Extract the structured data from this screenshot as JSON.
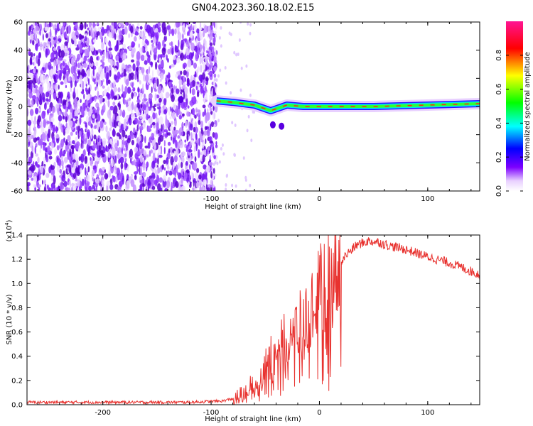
{
  "title": "GN04.2023.360.18.02.E15",
  "chart_data": [
    {
      "type": "heatmap",
      "xlabel": "Height of straight line (km)",
      "ylabel": "Frequency (Hz)",
      "xlim": [
        -270,
        148
      ],
      "ylim": [
        -60,
        60
      ],
      "xticks": [
        -200,
        -100,
        0,
        100
      ],
      "yticks": [
        -60,
        -40,
        -20,
        0,
        20,
        40,
        60
      ],
      "grid": false,
      "noise_region_x": [
        -270,
        -95
      ],
      "signal_band_freq_hz": 1.5,
      "signal_track": [
        {
          "x": -95,
          "y": 4
        },
        {
          "x": -80,
          "y": 3
        },
        {
          "x": -60,
          "y": 1
        },
        {
          "x": -45,
          "y": -3
        },
        {
          "x": -30,
          "y": 1
        },
        {
          "x": -15,
          "y": 0
        },
        {
          "x": 0,
          "y": 0
        },
        {
          "x": 50,
          "y": 0
        },
        {
          "x": 100,
          "y": 1
        },
        {
          "x": 148,
          "y": 2
        }
      ],
      "colorbar": {
        "label": "Normalized spectral amplitude",
        "range": [
          0,
          1
        ],
        "ticks": [
          "0.0",
          "0.2",
          "0.4",
          "0.6",
          "0.8"
        ],
        "colors": [
          "#ffffff",
          "#7d00ff",
          "#0000ff",
          "#00ffff",
          "#00ff00",
          "#ffff00",
          "#ff0000",
          "#ff1493"
        ]
      }
    },
    {
      "type": "line",
      "xlabel": "Height of straight line (km)",
      "ylabel": "SNR (10 * v/v)",
      "y_multiplier_label": "(x10",
      "y_multiplier_exp": "4",
      "xlim": [
        -270,
        148
      ],
      "ylim": [
        0,
        1.4
      ],
      "xticks": [
        -200,
        -100,
        0,
        100
      ],
      "yticks": [
        "0.0",
        "0.2",
        "0.4",
        "0.6",
        "0.8",
        "1.0",
        "1.2",
        "1.4"
      ],
      "grid": false,
      "series_color": "#e8322f",
      "series": [
        {
          "x": [
            -270,
            -200,
            -120,
            -90,
            -75,
            -65,
            -55,
            -45,
            -38,
            -32,
            -25,
            -18,
            -10,
            -4,
            0,
            8,
            15,
            25,
            35,
            45,
            55,
            65,
            80,
            100,
            120,
            135,
            148
          ],
          "y": [
            0.02,
            0.02,
            0.02,
            0.03,
            0.06,
            0.13,
            0.22,
            0.38,
            0.5,
            0.55,
            0.6,
            0.66,
            0.74,
            0.86,
            0.95,
            1.02,
            1.12,
            1.24,
            1.32,
            1.35,
            1.34,
            1.31,
            1.28,
            1.22,
            1.17,
            1.12,
            1.07
          ]
        }
      ]
    }
  ]
}
